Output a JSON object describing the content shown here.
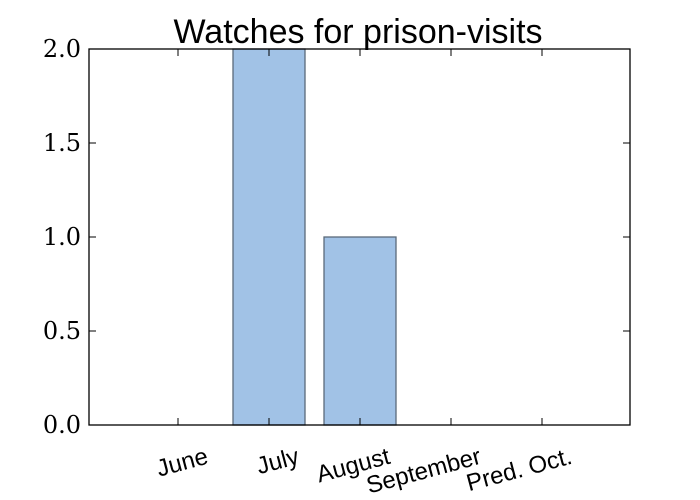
{
  "chart_data": {
    "type": "bar",
    "title": "Watches for prison-visits",
    "xlabel": "",
    "ylabel": "",
    "categories": [
      "June",
      "July",
      "August",
      "September",
      "Pred. Oct."
    ],
    "values": [
      0,
      2,
      1,
      0,
      0
    ],
    "ylim": [
      0,
      2.0
    ],
    "yticks": [
      "0.0",
      "0.5",
      "1.0",
      "1.5",
      "2.0"
    ],
    "grid": false,
    "legend": "none",
    "bar_color": "#a1c2e6",
    "bar_edge_color": "#5a6a7a"
  }
}
